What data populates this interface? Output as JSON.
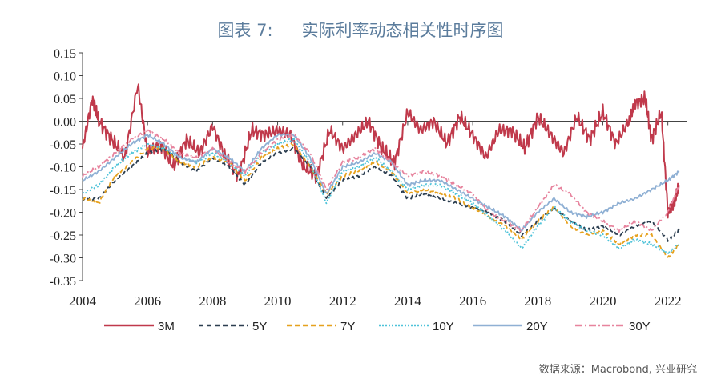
{
  "title": {
    "label": "图表 7:",
    "text": "实际利率动态相关性时序图"
  },
  "source_text": "数据来源：Macrobond, 兴业研究",
  "chart_data": {
    "type": "line",
    "title": "实际利率动态相关性时序图",
    "xlim": [
      2004,
      2022.6
    ],
    "ylim": [
      -0.35,
      0.15
    ],
    "x_ticks": [
      2004,
      2006,
      2008,
      2010,
      2012,
      2014,
      2016,
      2018,
      2020,
      2022
    ],
    "x_tick_labels": [
      "2004",
      "2006",
      "2008",
      "2010",
      "2012",
      "2014",
      "2016",
      "2018",
      "2020",
      "2022"
    ],
    "y_ticks": [
      0.15,
      0.1,
      0.05,
      0.0,
      -0.05,
      -0.1,
      -0.15,
      -0.2,
      -0.25,
      -0.3,
      -0.35
    ],
    "y_tick_labels": [
      "0.15",
      "0.10",
      "0.05",
      "0.00",
      "-0.05",
      "-0.10",
      "-0.15",
      "-0.20",
      "-0.25",
      "-0.30",
      "-0.35"
    ],
    "grid": false,
    "legend_position": "bottom",
    "series": [
      {
        "name": "3M",
        "color": "#c0394b",
        "dash": "solid",
        "x": [
          2004.0,
          2004.3,
          2004.5,
          2004.9,
          2005.3,
          2005.7,
          2006.0,
          2006.4,
          2006.8,
          2007.2,
          2007.6,
          2008.0,
          2008.4,
          2008.8,
          2009.2,
          2009.6,
          2010.0,
          2010.4,
          2010.8,
          2011.2,
          2011.6,
          2012.0,
          2012.4,
          2012.8,
          2013.2,
          2013.6,
          2014.0,
          2014.4,
          2014.8,
          2015.2,
          2015.6,
          2016.0,
          2016.4,
          2016.8,
          2017.2,
          2017.6,
          2018.0,
          2018.4,
          2018.8,
          2019.2,
          2019.6,
          2020.0,
          2020.4,
          2020.8,
          2021.0,
          2021.3,
          2021.5,
          2021.8,
          2022.0,
          2022.2,
          2022.35
        ],
        "y": [
          -0.06,
          0.05,
          0.0,
          -0.04,
          -0.08,
          0.08,
          -0.07,
          -0.05,
          -0.1,
          -0.04,
          -0.07,
          -0.01,
          -0.08,
          -0.12,
          -0.02,
          -0.03,
          -0.02,
          -0.03,
          -0.1,
          -0.12,
          -0.02,
          -0.06,
          -0.03,
          0.0,
          -0.06,
          -0.09,
          0.02,
          -0.02,
          0.0,
          -0.05,
          0.01,
          -0.03,
          -0.08,
          -0.02,
          -0.02,
          -0.06,
          0.01,
          -0.03,
          -0.07,
          0.01,
          -0.04,
          0.02,
          -0.05,
          0.0,
          0.04,
          0.05,
          -0.04,
          0.02,
          -0.2,
          -0.18,
          -0.14
        ]
      },
      {
        "name": "5Y",
        "color": "#2c3e50",
        "dash": "dash",
        "x": [
          2004.0,
          2004.5,
          2005.0,
          2005.5,
          2006.0,
          2006.5,
          2007.0,
          2007.5,
          2008.0,
          2008.5,
          2009.0,
          2009.5,
          2010.0,
          2010.5,
          2011.0,
          2011.5,
          2012.0,
          2012.5,
          2013.0,
          2013.5,
          2014.0,
          2014.5,
          2015.0,
          2015.5,
          2016.0,
          2016.5,
          2017.0,
          2017.5,
          2018.0,
          2018.5,
          2019.0,
          2019.5,
          2020.0,
          2020.5,
          2021.0,
          2021.5,
          2022.0,
          2022.35
        ],
        "y": [
          -0.17,
          -0.17,
          -0.13,
          -0.1,
          -0.07,
          -0.06,
          -0.09,
          -0.11,
          -0.08,
          -0.1,
          -0.14,
          -0.09,
          -0.07,
          -0.06,
          -0.1,
          -0.17,
          -0.13,
          -0.12,
          -0.1,
          -0.12,
          -0.17,
          -0.16,
          -0.17,
          -0.18,
          -0.19,
          -0.2,
          -0.22,
          -0.25,
          -0.22,
          -0.19,
          -0.22,
          -0.24,
          -0.23,
          -0.25,
          -0.23,
          -0.22,
          -0.26,
          -0.24
        ]
      },
      {
        "name": "7Y",
        "color": "#e6a11e",
        "dash": "dash",
        "x": [
          2004.0,
          2004.5,
          2005.0,
          2005.5,
          2006.0,
          2006.5,
          2007.0,
          2007.5,
          2008.0,
          2008.5,
          2009.0,
          2009.5,
          2010.0,
          2010.5,
          2011.0,
          2011.5,
          2012.0,
          2012.5,
          2013.0,
          2013.5,
          2014.0,
          2014.5,
          2015.0,
          2015.5,
          2016.0,
          2016.5,
          2017.0,
          2017.5,
          2018.0,
          2018.5,
          2019.0,
          2019.5,
          2020.0,
          2020.5,
          2021.0,
          2021.5,
          2022.0,
          2022.35
        ],
        "y": [
          -0.17,
          -0.18,
          -0.12,
          -0.09,
          -0.06,
          -0.06,
          -0.09,
          -0.1,
          -0.08,
          -0.09,
          -0.13,
          -0.08,
          -0.06,
          -0.05,
          -0.1,
          -0.16,
          -0.12,
          -0.11,
          -0.09,
          -0.11,
          -0.16,
          -0.15,
          -0.16,
          -0.17,
          -0.19,
          -0.21,
          -0.23,
          -0.26,
          -0.22,
          -0.19,
          -0.23,
          -0.25,
          -0.24,
          -0.27,
          -0.25,
          -0.25,
          -0.3,
          -0.27
        ]
      },
      {
        "name": "10Y",
        "color": "#4fc3d9",
        "dash": "dot",
        "x": [
          2004.0,
          2004.5,
          2005.0,
          2005.5,
          2006.0,
          2006.5,
          2007.0,
          2007.5,
          2008.0,
          2008.5,
          2009.0,
          2009.5,
          2010.0,
          2010.5,
          2011.0,
          2011.5,
          2012.0,
          2012.5,
          2013.0,
          2013.5,
          2014.0,
          2014.5,
          2015.0,
          2015.5,
          2016.0,
          2016.5,
          2017.0,
          2017.5,
          2018.0,
          2018.5,
          2019.0,
          2019.5,
          2020.0,
          2020.5,
          2021.0,
          2021.5,
          2022.0,
          2022.35
        ],
        "y": [
          -0.16,
          -0.14,
          -0.1,
          -0.07,
          -0.05,
          -0.06,
          -0.08,
          -0.09,
          -0.07,
          -0.09,
          -0.12,
          -0.07,
          -0.05,
          -0.04,
          -0.09,
          -0.18,
          -0.11,
          -0.1,
          -0.08,
          -0.11,
          -0.15,
          -0.14,
          -0.14,
          -0.16,
          -0.18,
          -0.21,
          -0.24,
          -0.28,
          -0.23,
          -0.19,
          -0.22,
          -0.24,
          -0.25,
          -0.28,
          -0.26,
          -0.27,
          -0.29,
          -0.27
        ]
      },
      {
        "name": "20Y",
        "color": "#8fb0d4",
        "dash": "solid",
        "x": [
          2004.0,
          2004.5,
          2005.0,
          2005.5,
          2006.0,
          2006.5,
          2007.0,
          2007.5,
          2008.0,
          2008.5,
          2009.0,
          2009.5,
          2010.0,
          2010.5,
          2011.0,
          2011.5,
          2012.0,
          2012.5,
          2013.0,
          2013.5,
          2014.0,
          2014.5,
          2015.0,
          2015.5,
          2016.0,
          2016.5,
          2017.0,
          2017.5,
          2018.0,
          2018.5,
          2019.0,
          2019.5,
          2020.0,
          2020.5,
          2021.0,
          2021.5,
          2022.0,
          2022.35
        ],
        "y": [
          -0.13,
          -0.11,
          -0.08,
          -0.05,
          -0.03,
          -0.05,
          -0.08,
          -0.09,
          -0.06,
          -0.08,
          -0.11,
          -0.06,
          -0.03,
          -0.03,
          -0.08,
          -0.16,
          -0.1,
          -0.09,
          -0.07,
          -0.09,
          -0.14,
          -0.13,
          -0.13,
          -0.15,
          -0.17,
          -0.19,
          -0.21,
          -0.24,
          -0.2,
          -0.17,
          -0.2,
          -0.21,
          -0.2,
          -0.18,
          -0.17,
          -0.15,
          -0.13,
          -0.11
        ]
      },
      {
        "name": "30Y",
        "color": "#e7849e",
        "dash": "dashdot",
        "x": [
          2004.0,
          2004.5,
          2005.0,
          2005.5,
          2006.0,
          2006.5,
          2007.0,
          2007.5,
          2008.0,
          2008.5,
          2009.0,
          2009.5,
          2010.0,
          2010.5,
          2011.0,
          2011.5,
          2012.0,
          2012.5,
          2013.0,
          2013.5,
          2014.0,
          2014.5,
          2015.0,
          2015.5,
          2016.0,
          2016.5,
          2017.0,
          2017.5,
          2018.0,
          2018.5,
          2019.0,
          2019.5,
          2020.0,
          2020.5,
          2021.0,
          2021.5,
          2022.0,
          2022.35
        ],
        "y": [
          -0.12,
          -0.1,
          -0.07,
          -0.04,
          -0.02,
          -0.04,
          -0.07,
          -0.08,
          -0.06,
          -0.09,
          -0.11,
          -0.07,
          -0.04,
          -0.03,
          -0.07,
          -0.15,
          -0.09,
          -0.08,
          -0.06,
          -0.09,
          -0.12,
          -0.11,
          -0.12,
          -0.14,
          -0.16,
          -0.2,
          -0.22,
          -0.24,
          -0.19,
          -0.14,
          -0.16,
          -0.2,
          -0.22,
          -0.24,
          -0.22,
          -0.24,
          -0.2,
          -0.14
        ]
      }
    ]
  }
}
